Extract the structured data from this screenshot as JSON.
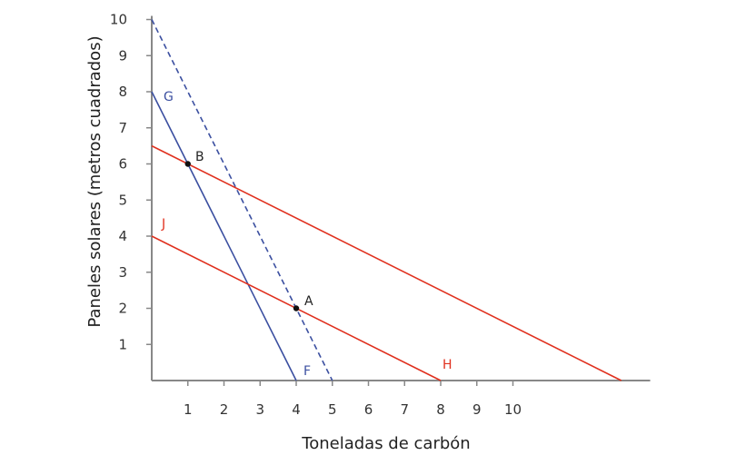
{
  "chart_data": {
    "type": "line",
    "title": "",
    "xlabel": "Toneladas de carbón",
    "ylabel": "Paneles solares (metros cuadrados)",
    "xlim": [
      0,
      13.8
    ],
    "ylim": [
      0,
      10
    ],
    "x_ticks": [
      1,
      2,
      3,
      4,
      5,
      6,
      7,
      8,
      9,
      10
    ],
    "y_ticks": [
      1,
      2,
      3,
      4,
      5,
      6,
      7,
      8,
      9,
      10
    ],
    "grid": false,
    "legend": "none",
    "series": [
      {
        "name": "GF",
        "label_start": "G",
        "label_end": "F",
        "color": "#3b4fa0",
        "style": "solid",
        "points": [
          [
            0,
            8
          ],
          [
            4,
            0
          ]
        ]
      },
      {
        "name": "dashed",
        "color": "#3b4fa0",
        "style": "dashed",
        "points": [
          [
            0,
            10
          ],
          [
            5,
            0
          ]
        ]
      },
      {
        "name": "JH",
        "label_start": "J",
        "label_end": "H",
        "color": "#e0301e",
        "style": "solid",
        "points": [
          [
            0,
            4
          ],
          [
            8,
            0
          ]
        ]
      },
      {
        "name": "upper-red",
        "color": "#e0301e",
        "style": "solid",
        "points": [
          [
            0,
            6.5
          ],
          [
            13,
            0
          ]
        ]
      }
    ],
    "annotations": [
      {
        "label": "B",
        "x": 1,
        "y": 6
      },
      {
        "label": "A",
        "x": 4,
        "y": 2
      }
    ]
  },
  "labels": {
    "G": "G",
    "F": "F",
    "J": "J",
    "H": "H",
    "A": "A",
    "B": "B"
  }
}
